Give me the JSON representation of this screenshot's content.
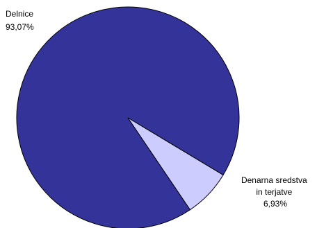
{
  "chart_data": {
    "type": "pie",
    "title": "",
    "slices": [
      {
        "label_lines": [
          "Delnice"
        ],
        "value": 93.07,
        "value_label": "93,07%",
        "color": "#333399"
      },
      {
        "label_lines": [
          "Denarna sredstva",
          "in terjatve"
        ],
        "value": 6.93,
        "value_label": "6,93%",
        "color": "#ccccff"
      }
    ],
    "stroke_color": "#000000",
    "legend": "none"
  }
}
